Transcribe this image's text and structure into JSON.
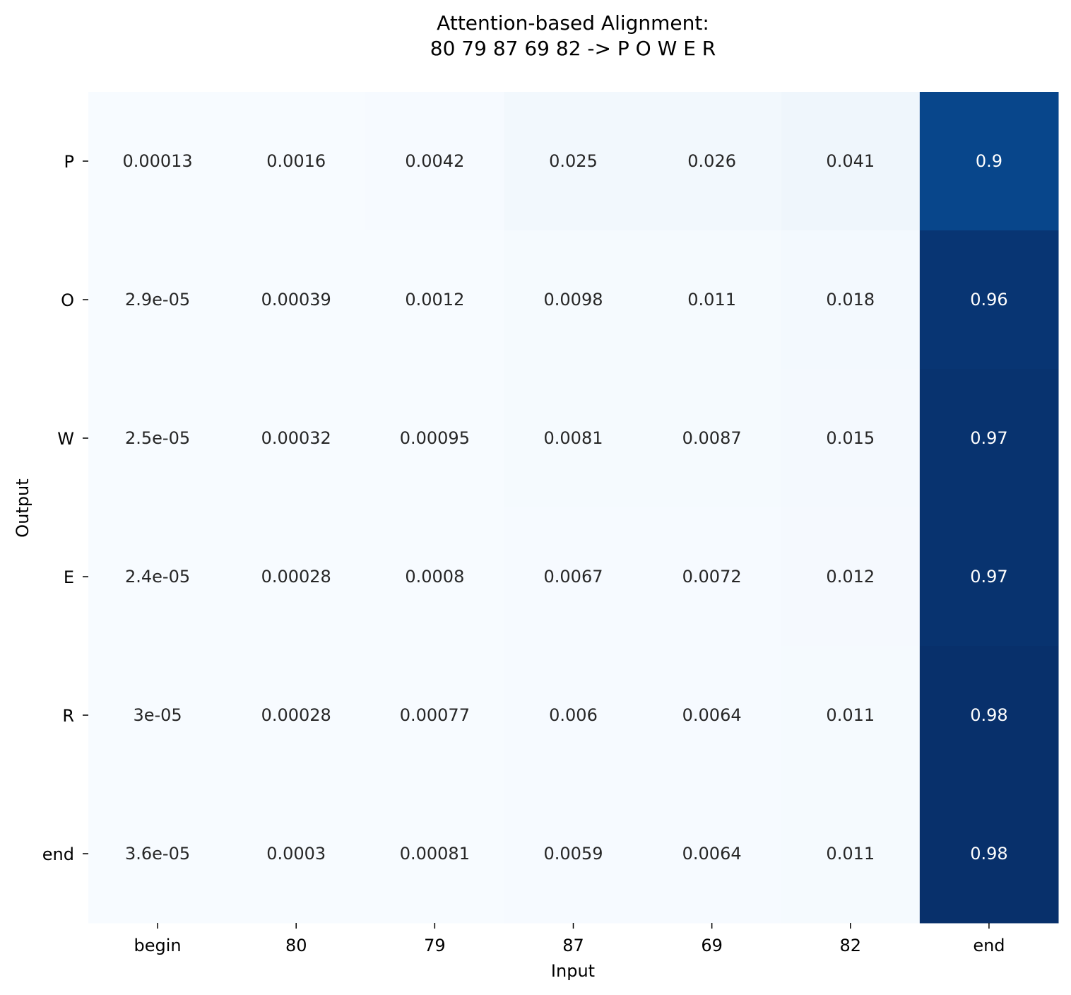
{
  "chart_data": {
    "type": "heatmap",
    "title_lines": [
      "Attention-based Alignment:",
      "80 79 87 69 82 -> P O W E R"
    ],
    "xlabel": "Input",
    "ylabel": "Output",
    "x_categories": [
      "begin",
      "80",
      "79",
      "87",
      "69",
      "82",
      "end"
    ],
    "y_categories": [
      "P",
      "O",
      "W",
      "E",
      "R",
      "end"
    ],
    "values": [
      [
        0.00013,
        0.0016,
        0.0042,
        0.025,
        0.026,
        0.041,
        0.9
      ],
      [
        2.9e-05,
        0.00039,
        0.0012,
        0.0098,
        0.011,
        0.018,
        0.96
      ],
      [
        2.5e-05,
        0.00032,
        0.00095,
        0.0081,
        0.0087,
        0.015,
        0.97
      ],
      [
        2.4e-05,
        0.00028,
        0.0008,
        0.0067,
        0.0072,
        0.012,
        0.97
      ],
      [
        3e-05,
        0.00028,
        0.00077,
        0.006,
        0.0064,
        0.011,
        0.98
      ],
      [
        3.6e-05,
        0.0003,
        0.00081,
        0.0059,
        0.0064,
        0.011,
        0.98
      ]
    ],
    "cell_labels": [
      [
        "0.00013",
        "0.0016",
        "0.0042",
        "0.025",
        "0.026",
        "0.041",
        "0.9"
      ],
      [
        "2.9e-05",
        "0.00039",
        "0.0012",
        "0.0098",
        "0.011",
        "0.018",
        "0.96"
      ],
      [
        "2.5e-05",
        "0.00032",
        "0.00095",
        "0.0081",
        "0.0087",
        "0.015",
        "0.97"
      ],
      [
        "2.4e-05",
        "0.00028",
        "0.0008",
        "0.0067",
        "0.0072",
        "0.012",
        "0.97"
      ],
      [
        "3e-05",
        "0.00028",
        "0.00077",
        "0.006",
        "0.0064",
        "0.011",
        "0.98"
      ],
      [
        "3.6e-05",
        "0.0003",
        "0.00081",
        "0.0059",
        "0.0064",
        "0.011",
        "0.98"
      ]
    ],
    "colormap": "Blues",
    "color_low": "#f7fbff",
    "color_high": "#08306b",
    "colorbar": false
  }
}
